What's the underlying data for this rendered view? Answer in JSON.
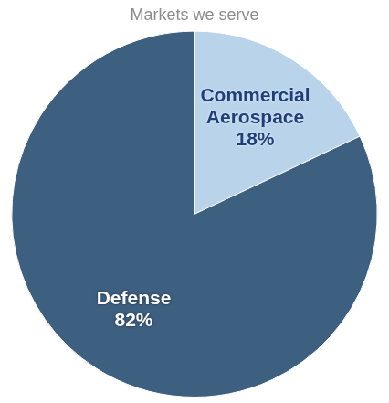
{
  "chart_data": {
    "type": "pie",
    "title": "Markets we serve",
    "categories": [
      "Commercial Aerospace",
      "Defense"
    ],
    "values": [
      18,
      82
    ],
    "value_labels": [
      "18%",
      "82%"
    ],
    "colors": [
      "#b9d3ea",
      "#3d5f80"
    ],
    "data_labels": true
  }
}
